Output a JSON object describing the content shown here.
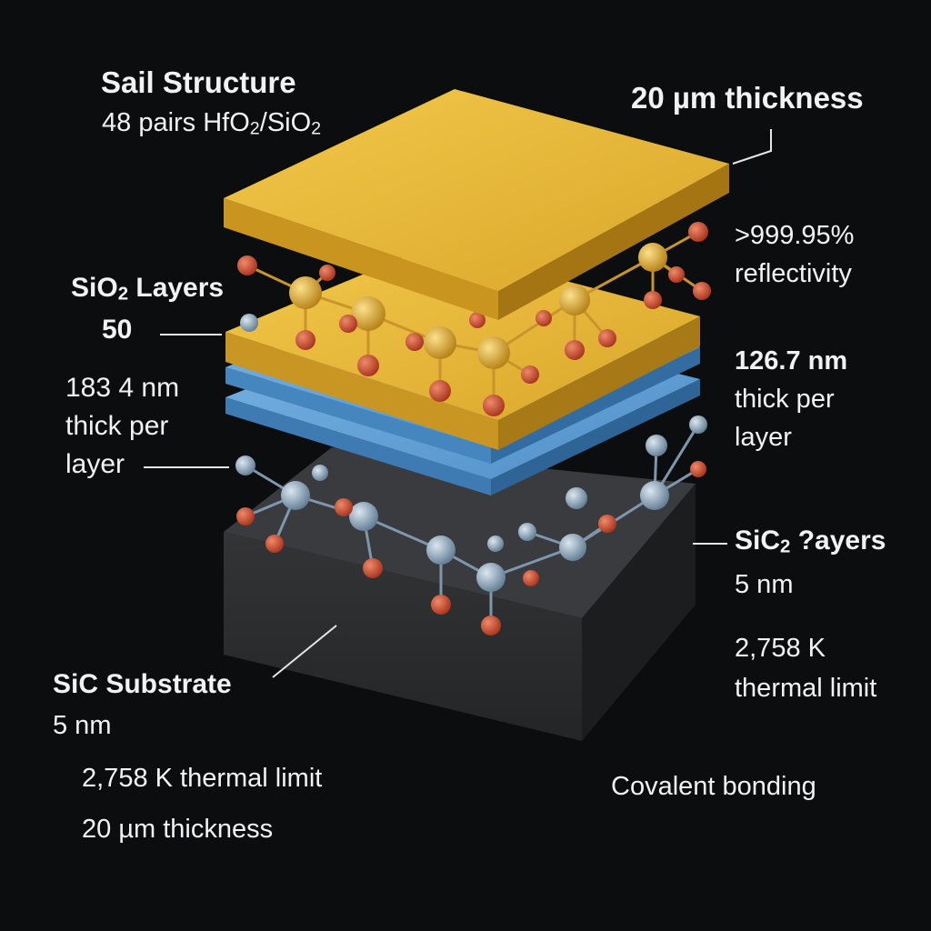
{
  "colors": {
    "background": "#0b0d0f",
    "gold": "#e6b02e",
    "blue": "#5b9fd8",
    "substrate": "#2a2b2d",
    "oxygen": "#c4472c",
    "hafnium": "#dca12a",
    "silicon": "#8fa8bd"
  },
  "sail": {
    "title": "Sail Structure",
    "pairs_prefix": "48 pairs HfO",
    "pairs_sub1": "2",
    "pairs_mid": "/SiO",
    "pairs_sub2": "2"
  },
  "thickness_top": "20 µm thickness",
  "reflectivity": {
    "line1": ">999.95%",
    "line2": "reflectivity"
  },
  "sio2": {
    "prefix": "SiO",
    "sub": "2",
    "suffix": " Layers",
    "count": "50",
    "thick_line1": "183 4 nm",
    "thick_line2": "thick per",
    "thick_line3": "layer"
  },
  "right_layer": {
    "line1": "126.7 nm",
    "line2": "thick per",
    "line3": "layer"
  },
  "sic2": {
    "prefix": "SiC",
    "sub": "2",
    "suffix": " ?ayers",
    "value": "5 nm"
  },
  "right_thermal": {
    "line1": "2,758 K",
    "line2": "thermal limit"
  },
  "substrate": {
    "title": "SiC Substrate",
    "value": "5 nm"
  },
  "bottom_thermal": "2,758 K thermal limit",
  "bottom_thickness": "20 µm thickness",
  "covalent": "Covalent bonding"
}
